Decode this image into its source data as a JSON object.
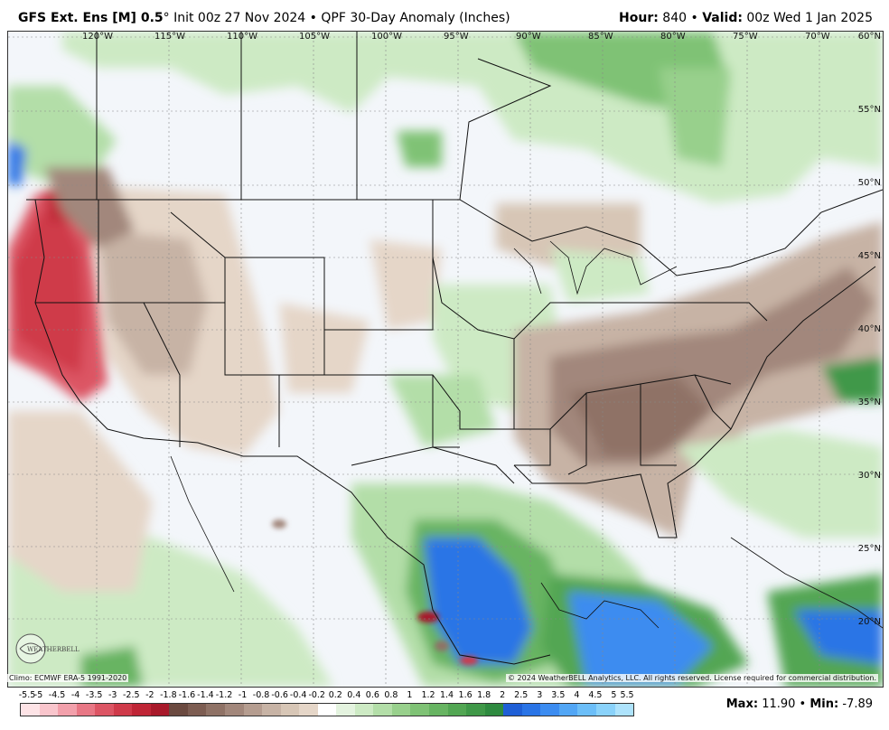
{
  "header": {
    "model": "GFS Ext.  Ens [M] 0.5",
    "degree": "°",
    "init": "Init 00z 27 Nov 2024",
    "sep": "•",
    "product": "QPF 30-Day Anomaly (Inches)",
    "hour_label": "Hour:",
    "hour_value": "840",
    "valid_label": "Valid:",
    "valid_value": "00z Wed 1 Jan 2025"
  },
  "map": {
    "longitudes": [
      "120°W",
      "115°W",
      "110°W",
      "105°W",
      "100°W",
      "95°W",
      "90°W",
      "85°W",
      "80°W",
      "75°W",
      "70°W"
    ],
    "latitudes": [
      "60°N",
      "55°N",
      "50°N",
      "45°N",
      "40°N",
      "35°N",
      "30°N",
      "25°N",
      "20°N"
    ]
  },
  "footer": {
    "climo": "Climo: ECMWF ERA-5 1991-2020",
    "copyright": "© 2024 WeatherBELL Analytics, LLC. All rights reserved. License required for commercial distribution.",
    "logo_text": "WEATHERBELL",
    "max_label": "Max",
    "max_value": "11.90",
    "min_label": "Min",
    "min_value": "-7.89"
  },
  "legend": {
    "ticks": [
      "-5.5",
      "-5",
      "-4.5",
      "-4",
      "-3.5",
      "-3",
      "-2.5",
      "-2",
      "-1.8",
      "-1.6",
      "-1.4",
      "-1.2",
      "-1",
      "-0.8",
      "-0.6",
      "-0.4",
      "-0.2",
      "0.2",
      "0.4",
      "0.6",
      "0.8",
      "1",
      "1.2",
      "1.4",
      "1.6",
      "1.8",
      "2",
      "2.5",
      "3",
      "3.5",
      "4",
      "4.5",
      "5",
      "5.5"
    ],
    "colors": [
      "#fde3e6",
      "#f9c5cc",
      "#f2a0ab",
      "#e87785",
      "#dc5564",
      "#cf3a4a",
      "#bf2536",
      "#a8192a",
      "#6b4a40",
      "#7d5d52",
      "#8f7266",
      "#a2877b",
      "#b59d90",
      "#c7b3a5",
      "#d7c6b6",
      "#e5d6c8",
      "#ffffff",
      "#e4f3df",
      "#cdeac4",
      "#b3dea8",
      "#98d08c",
      "#7fc275",
      "#67b462",
      "#52a653",
      "#3f9848",
      "#2e8a3f",
      "#1f5fd6",
      "#2a74e6",
      "#3c8cf0",
      "#52a6f5",
      "#6cbef8",
      "#8ad2fa",
      "#aee3fc"
    ]
  }
}
